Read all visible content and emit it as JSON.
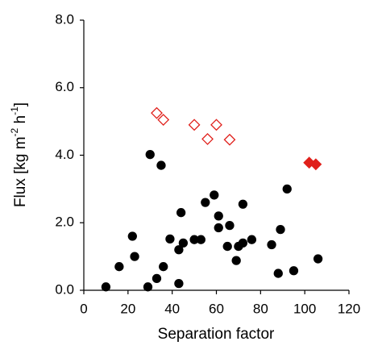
{
  "chart_data": {
    "type": "scatter",
    "xlabel": "Separation factor",
    "ylabel": [
      "Flux [kg m",
      "-2",
      " h",
      "-1",
      "]"
    ],
    "xlim": [
      0,
      120
    ],
    "xticks": [
      0,
      20,
      40,
      60,
      80,
      100,
      120
    ],
    "ylim": [
      0,
      8
    ],
    "yticks": [
      {
        "value": 0,
        "label": "0.0"
      },
      {
        "value": 2,
        "label": "2.0"
      },
      {
        "value": 4,
        "label": "4.0"
      },
      {
        "value": 6,
        "label": "6.0"
      },
      {
        "value": 8,
        "label": "8.0"
      }
    ],
    "series": [
      {
        "color": "#000000",
        "marker": "circle",
        "filled": true,
        "x": [
          10,
          16,
          22,
          23,
          29,
          30,
          33,
          35,
          36,
          39,
          43,
          43,
          44,
          45,
          50,
          53,
          55,
          59,
          61,
          61,
          65,
          66,
          69,
          70,
          72,
          72,
          76,
          85,
          88,
          89,
          92,
          95,
          106
        ],
        "values": [
          0.1,
          0.7,
          1.6,
          1.0,
          0.1,
          4.02,
          0.35,
          3.7,
          0.7,
          1.52,
          0.2,
          1.2,
          2.3,
          1.4,
          1.5,
          1.5,
          2.6,
          2.82,
          1.85,
          2.2,
          1.3,
          1.92,
          0.88,
          1.3,
          1.4,
          2.55,
          1.5,
          1.35,
          0.5,
          1.8,
          3.0,
          0.58,
          0.93
        ]
      },
      {
        "color": "#e0201b",
        "marker": "diamond",
        "filled": false,
        "x": [
          33,
          36,
          50,
          56,
          60,
          66
        ],
        "values": [
          5.25,
          5.05,
          4.9,
          4.48,
          4.9,
          4.46
        ]
      },
      {
        "color": "#e0201b",
        "marker": "diamond",
        "filled": true,
        "x": [
          102,
          105
        ],
        "values": [
          3.78,
          3.73
        ]
      }
    ]
  }
}
